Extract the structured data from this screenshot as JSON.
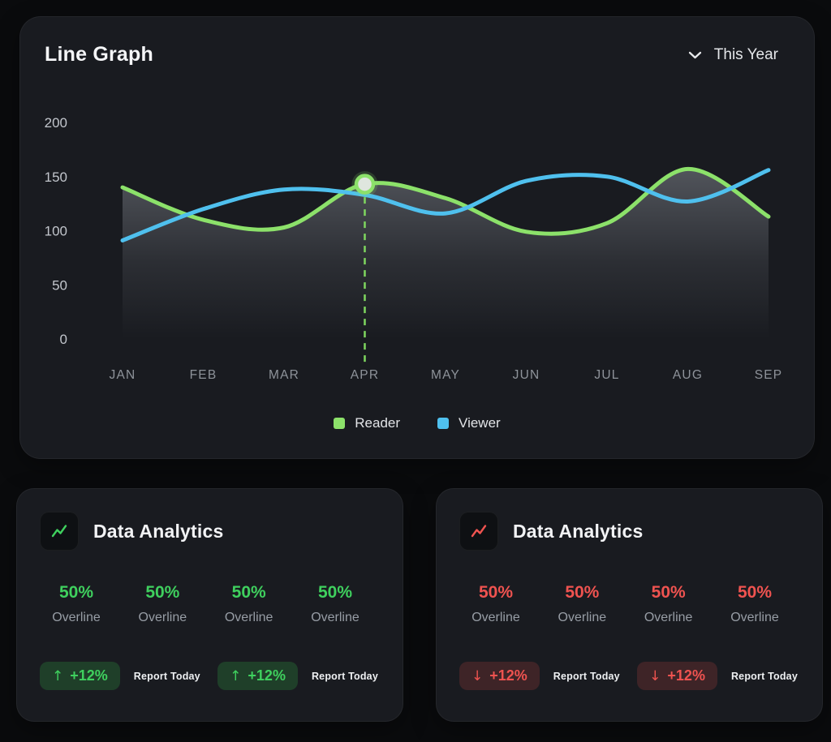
{
  "line_graph_card": {
    "title": "Line Graph",
    "period_selector": {
      "label": "This Year"
    }
  },
  "chart_data": {
    "type": "line",
    "title": "Line Graph",
    "x_categories": [
      "JAN",
      "FEB",
      "MAR",
      "APR",
      "MAY",
      "JUN",
      "JUL",
      "AUG",
      "SEP"
    ],
    "yticks": [
      0,
      50,
      100,
      150,
      200
    ],
    "ylim": [
      0,
      200
    ],
    "grid": false,
    "legend_position": "bottom",
    "series": [
      {
        "name": "Reader",
        "color": "#8CE16A",
        "area_fill": true,
        "values": [
          140,
          110,
          103,
          143,
          130,
          99,
          107,
          157,
          113
        ]
      },
      {
        "name": "Viewer",
        "color": "#4FC0EE",
        "area_fill": false,
        "values": [
          91,
          120,
          138,
          133,
          116,
          146,
          150,
          127,
          156
        ]
      }
    ],
    "highlight_point": {
      "series": "Reader",
      "x": "APR",
      "value": 143
    },
    "area_gradient_color": "#d5dbe6"
  },
  "analytics_cards": [
    {
      "title": "Data Analytics",
      "variant": "positive",
      "trend": "up",
      "accent": "#3fd05e",
      "badge_bg": "#1f3f29",
      "stats": [
        {
          "value": "50%",
          "label": "Overline"
        },
        {
          "value": "50%",
          "label": "Overline"
        },
        {
          "value": "50%",
          "label": "Overline"
        },
        {
          "value": "50%",
          "label": "Overline"
        }
      ],
      "reports": [
        {
          "badge": "+12%",
          "label": "Report Today"
        },
        {
          "badge": "+12%",
          "label": "Report Today"
        }
      ]
    },
    {
      "title": "Data Analytics",
      "variant": "negative",
      "trend": "down",
      "accent": "#ef5350",
      "badge_bg": "#3e2427",
      "stats": [
        {
          "value": "50%",
          "label": "Overline"
        },
        {
          "value": "50%",
          "label": "Overline"
        },
        {
          "value": "50%",
          "label": "Overline"
        },
        {
          "value": "50%",
          "label": "Overline"
        }
      ],
      "reports": [
        {
          "badge": "+12%",
          "label": "Report Today"
        },
        {
          "badge": "+12%",
          "label": "Report Today"
        }
      ]
    }
  ]
}
